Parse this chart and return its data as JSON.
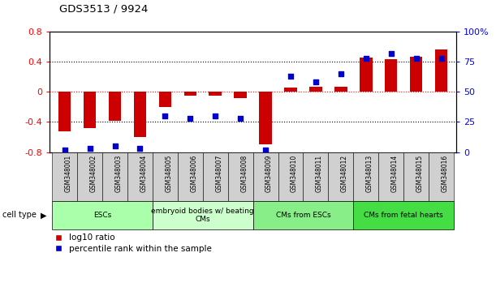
{
  "title": "GDS3513 / 9924",
  "samples": [
    "GSM348001",
    "GSM348002",
    "GSM348003",
    "GSM348004",
    "GSM348005",
    "GSM348006",
    "GSM348007",
    "GSM348008",
    "GSM348009",
    "GSM348010",
    "GSM348011",
    "GSM348012",
    "GSM348013",
    "GSM348014",
    "GSM348015",
    "GSM348016"
  ],
  "log10_ratio": [
    -0.52,
    -0.48,
    -0.38,
    -0.6,
    -0.2,
    -0.05,
    -0.05,
    -0.08,
    -0.7,
    0.06,
    0.07,
    0.07,
    0.45,
    0.43,
    0.47,
    0.56
  ],
  "percentile_rank": [
    2,
    3,
    5,
    3,
    30,
    28,
    30,
    28,
    2,
    63,
    58,
    65,
    78,
    82,
    78,
    78
  ],
  "cell_type_groups": [
    {
      "label": "ESCs",
      "start": 0,
      "end": 3,
      "color": "#aaffaa"
    },
    {
      "label": "embryoid bodies w/ beating\nCMs",
      "start": 4,
      "end": 7,
      "color": "#ccffcc"
    },
    {
      "label": "CMs from ESCs",
      "start": 8,
      "end": 11,
      "color": "#88ee88"
    },
    {
      "label": "CMs from fetal hearts",
      "start": 12,
      "end": 15,
      "color": "#44dd44"
    }
  ],
  "bar_color": "#cc0000",
  "dot_color": "#0000cc",
  "ylim_left": [
    -0.8,
    0.8
  ],
  "ylim_right": [
    0,
    100
  ],
  "yticks_left": [
    -0.8,
    -0.4,
    0,
    0.4,
    0.8
  ],
  "yticks_right": [
    0,
    25,
    50,
    75,
    100
  ],
  "ytick_labels_right": [
    "0",
    "25",
    "50",
    "75",
    "100%"
  ],
  "dotted_lines_black": [
    -0.4,
    0.4
  ],
  "dotted_line_red": 0.0
}
